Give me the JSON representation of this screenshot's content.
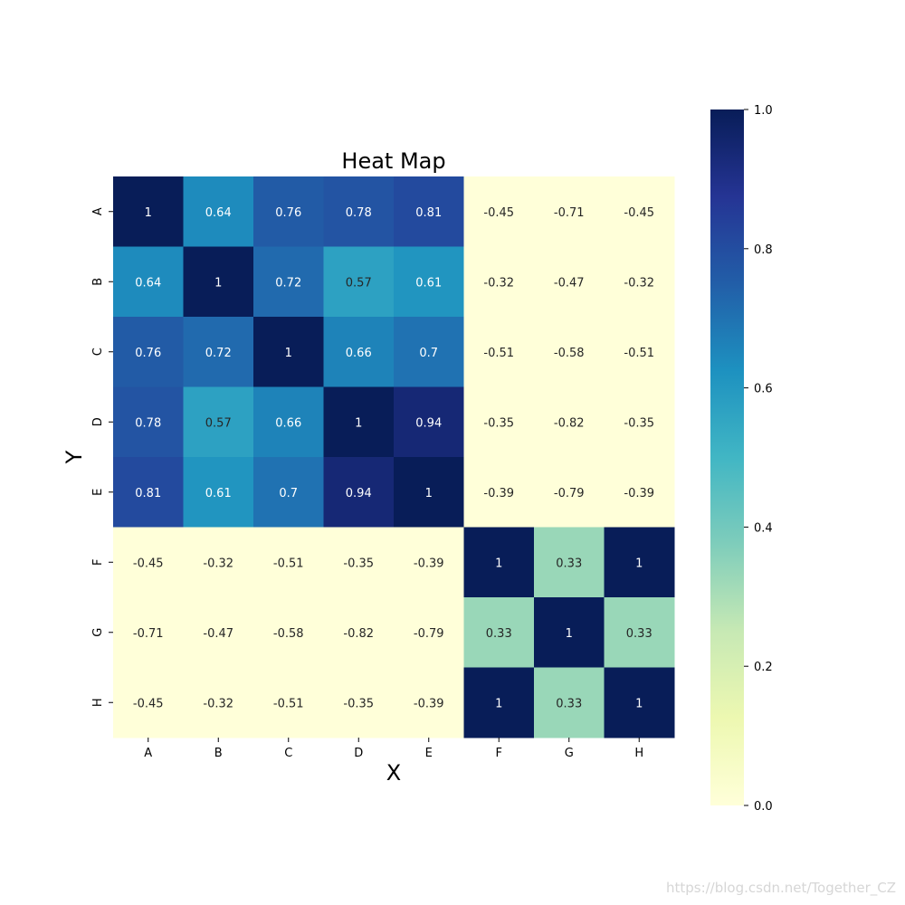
{
  "chart_data": {
    "type": "heatmap",
    "title": "Heat Map",
    "xlabel": "X",
    "ylabel": "Y",
    "x_categories": [
      "A",
      "B",
      "C",
      "D",
      "E",
      "F",
      "G",
      "H"
    ],
    "y_categories": [
      "A",
      "B",
      "C",
      "D",
      "E",
      "F",
      "G",
      "H"
    ],
    "values": [
      [
        1,
        0.64,
        0.76,
        0.78,
        0.81,
        -0.45,
        -0.71,
        -0.45
      ],
      [
        0.64,
        1,
        0.72,
        0.57,
        0.61,
        -0.32,
        -0.47,
        -0.32
      ],
      [
        0.76,
        0.72,
        1,
        0.66,
        0.7,
        -0.51,
        -0.58,
        -0.51
      ],
      [
        0.78,
        0.57,
        0.66,
        1,
        0.94,
        -0.35,
        -0.82,
        -0.35
      ],
      [
        0.81,
        0.61,
        0.7,
        0.94,
        1,
        -0.39,
        -0.79,
        -0.39
      ],
      [
        -0.45,
        -0.32,
        -0.51,
        -0.35,
        -0.39,
        1,
        0.33,
        1
      ],
      [
        -0.71,
        -0.47,
        -0.58,
        -0.82,
        -0.79,
        0.33,
        1,
        0.33
      ],
      [
        -0.45,
        -0.32,
        -0.51,
        -0.35,
        -0.39,
        1,
        0.33,
        1
      ]
    ],
    "colormap": "YlGnBu",
    "vmin": 0,
    "vmax": 1,
    "annotations": true,
    "colorbar_ticks": [
      "0.0",
      "0.2",
      "0.4",
      "0.6",
      "0.8",
      "1.0"
    ],
    "colorbar_position": "right"
  },
  "watermark": "https://blog.csdn.net/Together_CZ"
}
